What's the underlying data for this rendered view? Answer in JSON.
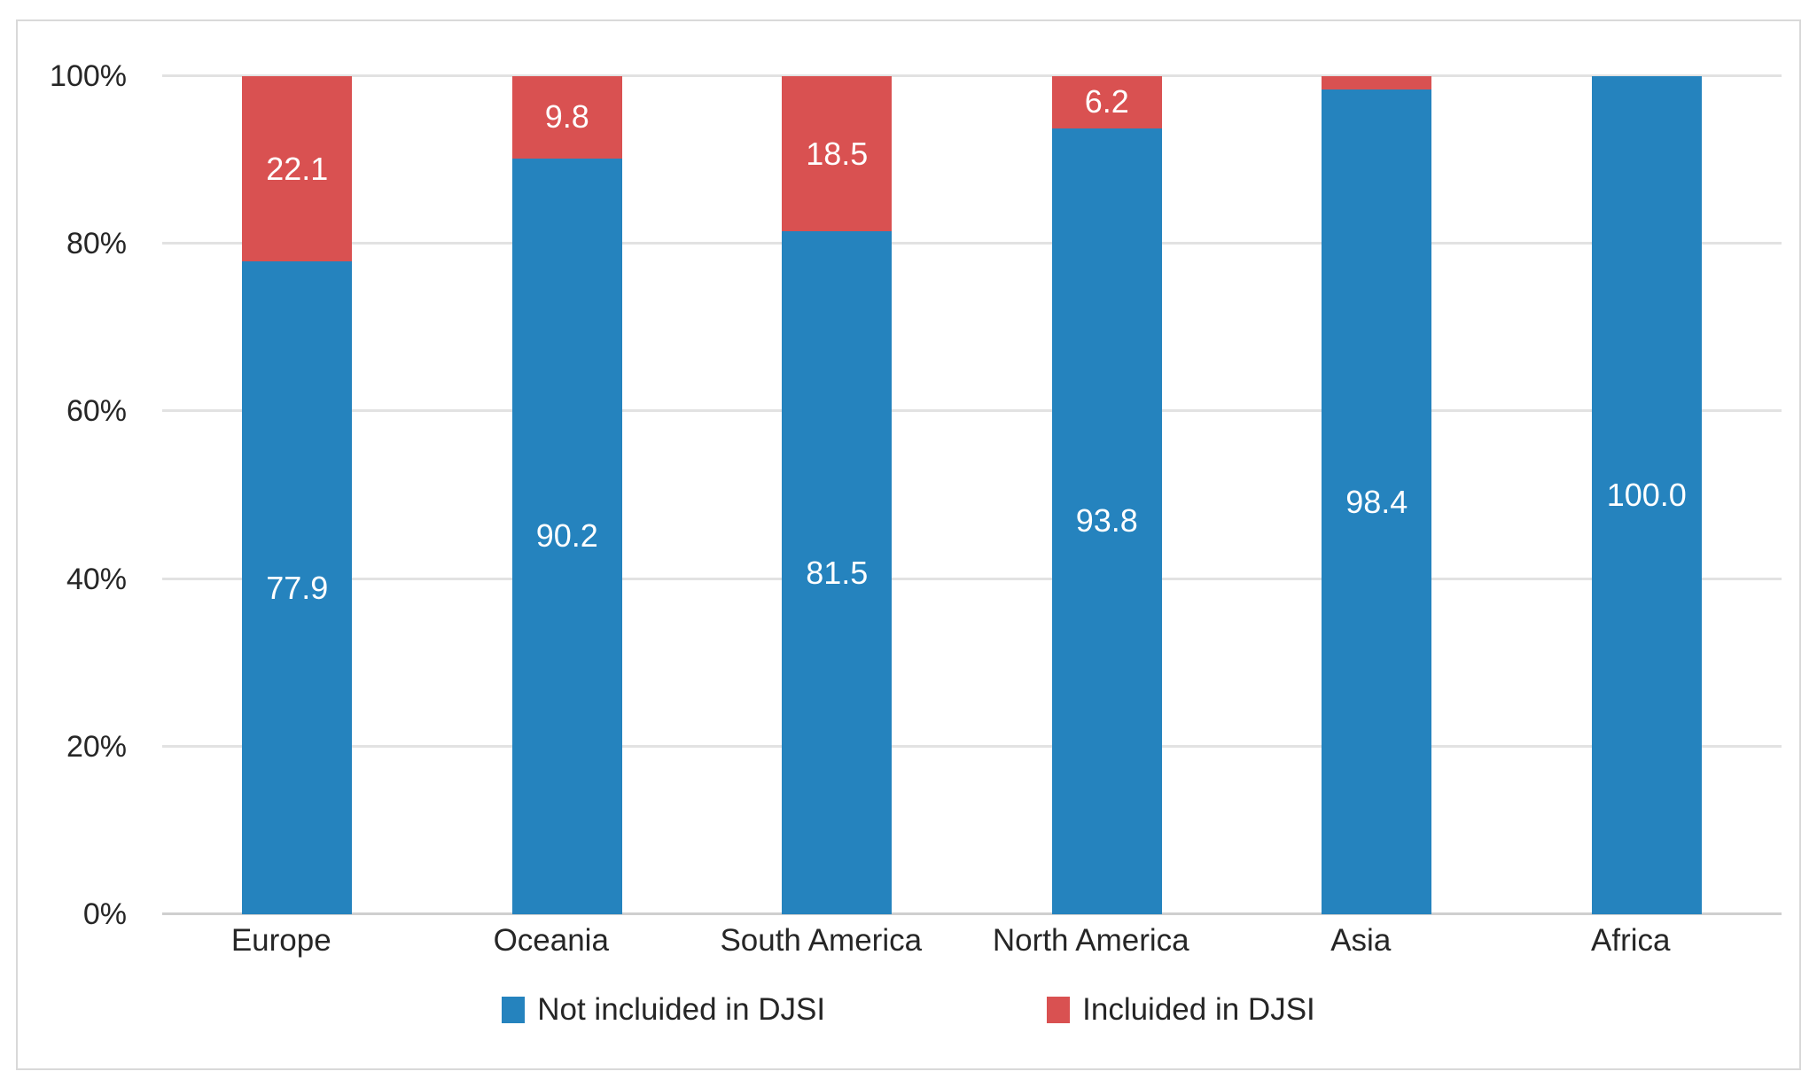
{
  "chart_data": {
    "type": "bar",
    "variant": "stacked-100",
    "categories": [
      "Europe",
      "Oceania",
      "South America",
      "North America",
      "Asia",
      "Africa"
    ],
    "series": [
      {
        "name": "Not incluided in DJSI",
        "color": "#2583be",
        "values": [
          77.9,
          90.2,
          81.5,
          93.8,
          98.4,
          100.0
        ],
        "data_labels": [
          "77.9",
          "90.2",
          "81.5",
          "93.8",
          "98.4",
          "100.0"
        ]
      },
      {
        "name": "Incluided in DJSI",
        "color": "#d95151",
        "values": [
          22.1,
          9.8,
          18.5,
          6.2,
          1.6,
          0.0
        ],
        "data_labels": [
          "22.1",
          "9.8",
          "18.5",
          "6.2",
          "",
          ""
        ]
      }
    ],
    "y_axis": {
      "min": 0,
      "max": 100,
      "step": 20,
      "tick_labels": [
        "0%",
        "20%",
        "40%",
        "60%",
        "80%",
        "100%"
      ]
    },
    "grid": true,
    "legend_position": "bottom",
    "styles": {
      "grid_color": "#e2e2e2",
      "axis_line_color": "#cfcfcf",
      "border_color": "#d9d9d9",
      "text_color": "#262626",
      "data_label_color": "#ffffff",
      "background": "#ffffff"
    }
  }
}
